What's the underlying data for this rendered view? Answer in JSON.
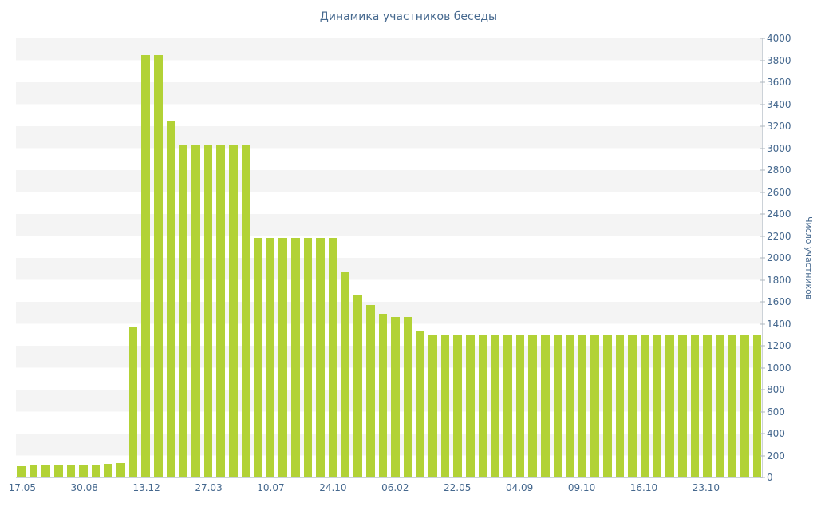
{
  "chart": {
    "title": "Динамика участников беседы",
    "y_axis_title": "Число участников"
  },
  "chart_data": {
    "type": "bar",
    "title": "Динамика участников беседы",
    "xlabel": "",
    "ylabel": "Число участников",
    "ylim": [
      0,
      4000
    ],
    "ytick_step": 200,
    "yticks": [
      0,
      200,
      400,
      600,
      800,
      1000,
      1200,
      1400,
      1600,
      1800,
      2000,
      2200,
      2400,
      2600,
      2800,
      3000,
      3200,
      3400,
      3600,
      3800,
      4000
    ],
    "xticks": [
      "17.05",
      "30.08",
      "13.12",
      "27.03",
      "10.07",
      "24.10",
      "06.02",
      "22.05",
      "04.09",
      "09.10",
      "16.10",
      "23.10"
    ],
    "xtick_every": 5,
    "bar_color": "#b2d236",
    "grid": "striped-horizontal-bands",
    "band_color": "#f4f4f4",
    "axis_color": "#ccd2d8",
    "text_color": "#45688e",
    "legend": "none",
    "values": [
      100,
      110,
      115,
      120,
      120,
      120,
      120,
      125,
      130,
      1370,
      3850,
      3850,
      3250,
      3030,
      3030,
      3030,
      3030,
      3030,
      3030,
      2180,
      2180,
      2180,
      2180,
      2180,
      2180,
      2180,
      1870,
      1660,
      1570,
      1490,
      1460,
      1460,
      1330,
      1300,
      1300,
      1300,
      1300,
      1300,
      1300,
      1300,
      1300,
      1300,
      1300,
      1300,
      1300,
      1300,
      1300,
      1300,
      1300,
      1300,
      1300,
      1300,
      1300,
      1300,
      1300,
      1300,
      1300,
      1300,
      1300,
      1300
    ]
  }
}
